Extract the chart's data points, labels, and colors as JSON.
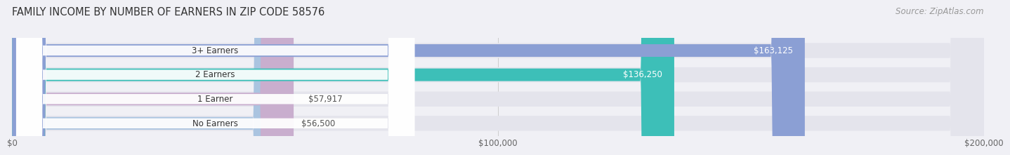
{
  "title": "FAMILY INCOME BY NUMBER OF EARNERS IN ZIP CODE 58576",
  "source": "Source: ZipAtlas.com",
  "categories": [
    "No Earners",
    "1 Earner",
    "2 Earners",
    "3+ Earners"
  ],
  "values": [
    56500,
    57917,
    136250,
    163125
  ],
  "labels": [
    "$56,500",
    "$57,917",
    "$136,250",
    "$163,125"
  ],
  "bar_colors": [
    "#aac4e0",
    "#c9aece",
    "#3dbfb8",
    "#8b9fd4"
  ],
  "bar_bg_color": "#e4e4ec",
  "xlim": [
    0,
    200000
  ],
  "xtick_values": [
    0,
    100000,
    200000
  ],
  "xtick_labels": [
    "$0",
    "$100,000",
    "$200,000"
  ],
  "background_color": "#f0f0f5",
  "label_threshold": 80000,
  "title_fontsize": 10.5,
  "source_fontsize": 8.5,
  "bar_label_fontsize": 8.5,
  "category_fontsize": 8.5,
  "tick_fontsize": 8.5
}
